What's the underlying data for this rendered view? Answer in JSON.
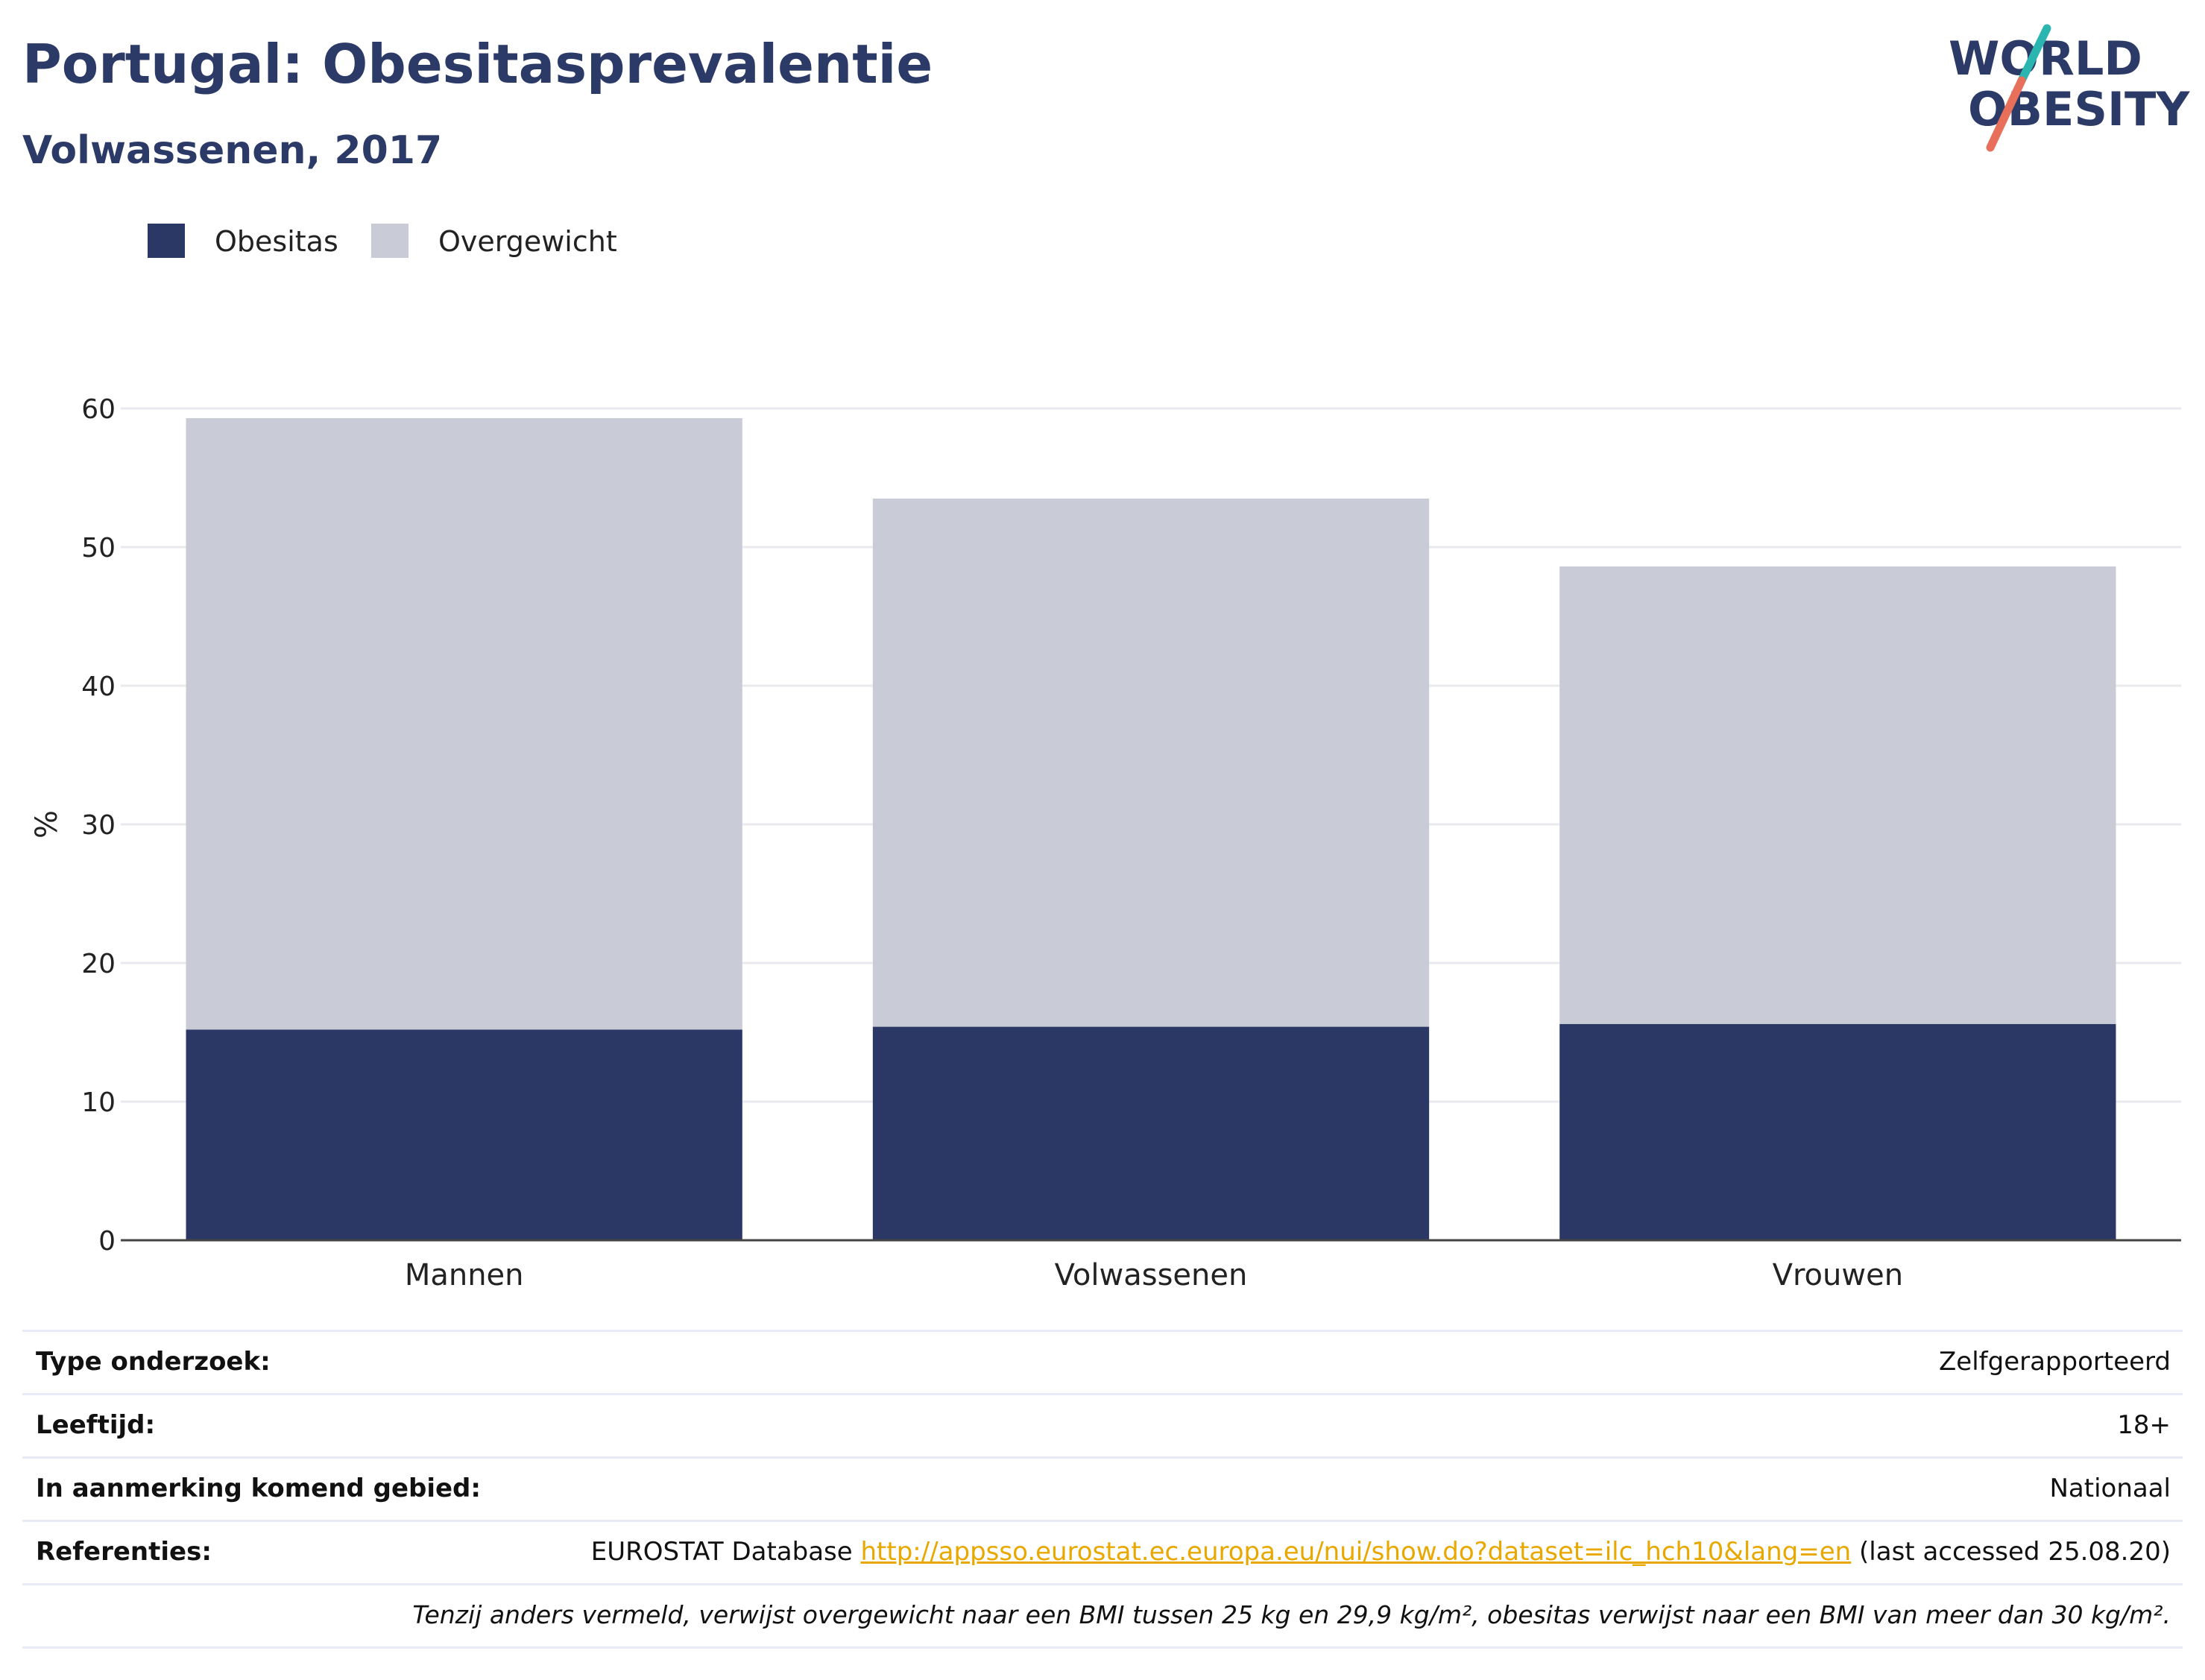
{
  "header": {
    "title": "Portugal: Obesitasprevalentie",
    "subtitle": "Volwassenen, 2017"
  },
  "logo": {
    "line1": "WORLD",
    "line2": "OBESITY",
    "colors": {
      "text": "#2b3a67",
      "slash_top": "#2bb5b0",
      "slash_bottom": "#e8705a"
    }
  },
  "legend": [
    {
      "label": "Obesitas",
      "color": "#2b3765"
    },
    {
      "label": "Overgewicht",
      "color": "#c9cbd7"
    }
  ],
  "chart_data": {
    "type": "bar",
    "stacked": true,
    "categories": [
      "Mannen",
      "Volwassenen",
      "Vrouwen"
    ],
    "series": [
      {
        "name": "Obesitas",
        "values": [
          15.2,
          15.4,
          15.6
        ],
        "color": "#2b3765"
      },
      {
        "name": "Overgewicht",
        "values": [
          44.1,
          38.1,
          33.0
        ],
        "color": "#c9cbd7"
      }
    ],
    "ylabel": "%",
    "xlabel": "",
    "ylim": [
      0,
      60
    ],
    "yticks": [
      0,
      10,
      20,
      30,
      40,
      50,
      60
    ],
    "grid": true,
    "legend_position": "top-left"
  },
  "info": {
    "rows": [
      {
        "key": "Type onderzoek:",
        "value": "Zelfgerapporteerd"
      },
      {
        "key": "Leeftijd:",
        "value": "18+"
      },
      {
        "key": "In aanmerking komend gebied:",
        "value": "Nationaal"
      }
    ],
    "references": {
      "key": "Referenties:",
      "prefix": "EUROSTAT Database ",
      "link": "http://appsso.eurostat.ec.europa.eu/nui/show.do?dataset=ilc_hch10&lang=en",
      "suffix": " (last accessed 25.08.20)"
    },
    "footnote": "Tenzij anders vermeld, verwijst overgewicht naar een BMI tussen 25 kg en 29,9 kg/m², obesitas verwijst naar een BMI van meer dan 30 kg/m²."
  }
}
